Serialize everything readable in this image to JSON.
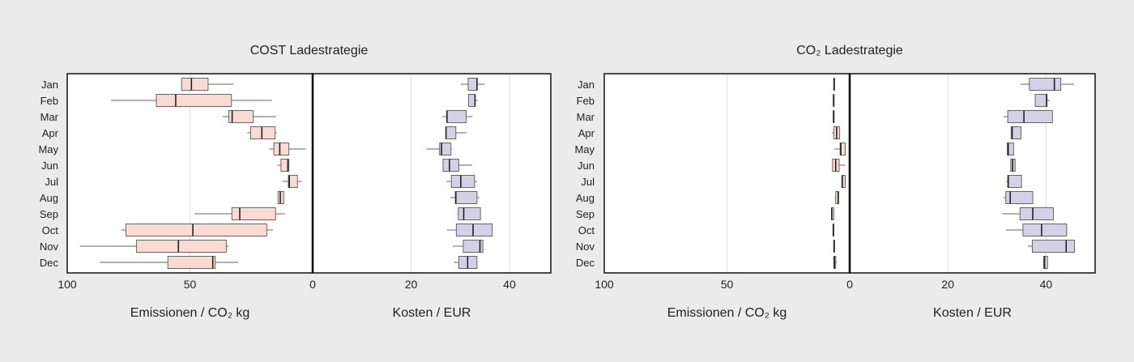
{
  "colors": {
    "background": "#ebebeb",
    "emission_fill": "#f9dcd1",
    "cost_fill": "#d4d0e6",
    "box_stroke": "#666666",
    "median": "#222222",
    "whisker": "#808080",
    "grid": "#dddddd"
  },
  "chart_data": [
    {
      "type": "boxplot-horizontal",
      "title": "COST Ladestrategie",
      "categories": [
        "Jan",
        "Feb",
        "Mar",
        "Apr",
        "May",
        "Jun",
        "Jul",
        "Aug",
        "Sep",
        "Oct",
        "Nov",
        "Dec"
      ],
      "panels": [
        {
          "xlabel": "Emissionen / CO₂ kg",
          "xlim": [
            100,
            0
          ],
          "ticks": [
            "100",
            "50",
            "0"
          ],
          "tick_values": [
            100,
            50,
            0
          ],
          "grid": [
            50
          ],
          "fill": "#f9dcd1",
          "boxes": [
            {
              "min": 32.2,
              "q1": 42.6,
              "median": 49.4,
              "q3": 53.4,
              "max": 53.4
            },
            {
              "min": 16.6,
              "q1": 33.1,
              "median": 55.8,
              "q3": 63.7,
              "max": 82.1
            },
            {
              "min": 14.9,
              "q1": 24.2,
              "median": 32.8,
              "q3": 34.2,
              "max": 36.6
            },
            {
              "min": 14.6,
              "q1": 15.3,
              "median": 20.7,
              "q3": 25.3,
              "max": 26.6
            },
            {
              "min": 2.7,
              "q1": 9.7,
              "median": 13.4,
              "q3": 15.8,
              "max": 17.7
            },
            {
              "min": 9.7,
              "q1": 9.7,
              "median": 10.1,
              "q3": 12.9,
              "max": 14.3
            },
            {
              "min": 4.4,
              "q1": 6.2,
              "median": 9.5,
              "q3": 9.9,
              "max": 12.4
            },
            {
              "min": 11.8,
              "q1": 11.8,
              "median": 13.2,
              "q3": 14.1,
              "max": 14.1
            },
            {
              "min": 11.3,
              "q1": 15.1,
              "median": 29.7,
              "q3": 32.9,
              "max": 48.1
            },
            {
              "min": 16.2,
              "q1": 18.7,
              "median": 48.8,
              "q3": 76.1,
              "max": 78.0
            },
            {
              "min": 34.3,
              "q1": 35.2,
              "median": 54.7,
              "q3": 71.8,
              "max": 94.8
            },
            {
              "min": 30.4,
              "q1": 39.7,
              "median": 40.7,
              "q3": 59.0,
              "max": 86.7
            }
          ]
        },
        {
          "xlabel": "Kosten / EUR",
          "xlim": [
            0,
            48.4
          ],
          "ticks": [
            "20",
            "40"
          ],
          "tick_values": [
            20,
            40
          ],
          "grid": [
            20,
            40
          ],
          "fill": "#d4d0e6",
          "boxes": [
            {
              "min": 30.1,
              "q1": 31.6,
              "median": 33.4,
              "q3": 33.4,
              "max": 35.0
            },
            {
              "min": 31.7,
              "q1": 31.7,
              "median": 33.0,
              "q3": 33.0,
              "max": 33.5
            },
            {
              "min": 26.4,
              "q1": 27.3,
              "median": 27.3,
              "q3": 31.2,
              "max": 32.5
            },
            {
              "min": 27.1,
              "q1": 27.1,
              "median": 27.1,
              "q3": 29.1,
              "max": 31.3
            },
            {
              "min": 23.1,
              "q1": 25.8,
              "median": 26.2,
              "q3": 28.1,
              "max": 28.3
            },
            {
              "min": 26.5,
              "q1": 26.5,
              "median": 27.8,
              "q3": 29.7,
              "max": 32.4
            },
            {
              "min": 27.2,
              "q1": 28.2,
              "median": 30.1,
              "q3": 32.9,
              "max": 33.4
            },
            {
              "min": 28.0,
              "q1": 29.0,
              "median": 29.1,
              "q3": 33.4,
              "max": 33.9
            },
            {
              "min": 29.4,
              "q1": 29.6,
              "median": 30.7,
              "q3": 34.1,
              "max": 34.1
            },
            {
              "min": 27.3,
              "q1": 29.2,
              "median": 32.6,
              "q3": 36.5,
              "max": 36.5
            },
            {
              "min": 28.5,
              "q1": 30.6,
              "median": 34.0,
              "q3": 34.6,
              "max": 34.6
            },
            {
              "min": 28.7,
              "q1": 29.7,
              "median": 31.5,
              "q3": 33.4,
              "max": 33.4
            }
          ]
        }
      ]
    },
    {
      "type": "boxplot-horizontal",
      "title": "CO₂ Ladestrategie",
      "categories": [
        "Jan",
        "Feb",
        "Mar",
        "Apr",
        "May",
        "Jun",
        "Jul",
        "Aug",
        "Sep",
        "Oct",
        "Nov",
        "Dec"
      ],
      "panels": [
        {
          "xlabel": "Emissionen / CO₂ kg",
          "xlim": [
            100,
            0
          ],
          "ticks": [
            "100",
            "50",
            "0"
          ],
          "tick_values": [
            100,
            50,
            0
          ],
          "grid": [
            50
          ],
          "fill": "#f9dcd1",
          "boxes": [
            {
              "min": 6.4,
              "q1": 6.4,
              "median": 6.4,
              "q3": 6.4,
              "max": 6.4
            },
            {
              "min": 6.6,
              "q1": 6.6,
              "median": 6.6,
              "q3": 6.6,
              "max": 6.6
            },
            {
              "min": 6.6,
              "q1": 6.6,
              "median": 6.6,
              "q3": 6.6,
              "max": 6.6
            },
            {
              "min": 3.9,
              "q1": 4.1,
              "median": 5.3,
              "q3": 6.5,
              "max": 7.2
            },
            {
              "min": 1.8,
              "q1": 1.8,
              "median": 3.6,
              "q3": 3.9,
              "max": 6.2
            },
            {
              "min": 1.8,
              "q1": 4.3,
              "median": 5.7,
              "q3": 7.0,
              "max": 7.0
            },
            {
              "min": 1.8,
              "q1": 1.8,
              "median": 3.0,
              "q3": 3.2,
              "max": 3.2
            },
            {
              "min": 4.5,
              "q1": 4.5,
              "median": 4.7,
              "q3": 5.7,
              "max": 6.1
            },
            {
              "min": 6.5,
              "q1": 6.5,
              "median": 7.3,
              "q3": 7.4,
              "max": 7.4
            },
            {
              "min": 6.7,
              "q1": 6.7,
              "median": 6.7,
              "q3": 6.7,
              "max": 6.7
            },
            {
              "min": 6.4,
              "q1": 6.4,
              "median": 6.4,
              "q3": 6.4,
              "max": 6.4
            },
            {
              "min": 5.1,
              "q1": 5.7,
              "median": 6.2,
              "q3": 6.5,
              "max": 6.5
            }
          ]
        },
        {
          "xlabel": "Kosten / EUR",
          "xlim": [
            0,
            50
          ],
          "ticks": [
            "20",
            "40"
          ],
          "tick_values": [
            20,
            40
          ],
          "grid": [
            20,
            40
          ],
          "fill": "#d4d0e6",
          "boxes": [
            {
              "min": 34.8,
              "q1": 36.6,
              "median": 41.7,
              "q3": 43.0,
              "max": 45.7
            },
            {
              "min": 37.8,
              "q1": 37.8,
              "median": 40.1,
              "q3": 40.2,
              "max": 40.8
            },
            {
              "min": 31.3,
              "q1": 32.2,
              "median": 35.5,
              "q3": 41.3,
              "max": 41.4
            },
            {
              "min": 32.9,
              "q1": 32.9,
              "median": 33.1,
              "q3": 34.9,
              "max": 34.9
            },
            {
              "min": 32.1,
              "q1": 32.1,
              "median": 32.3,
              "q3": 33.4,
              "max": 33.4
            },
            {
              "min": 32.8,
              "q1": 32.8,
              "median": 33.2,
              "q3": 33.7,
              "max": 33.7
            },
            {
              "min": 31.9,
              "q1": 32.2,
              "median": 32.3,
              "q3": 35.0,
              "max": 35.0
            },
            {
              "min": 31.3,
              "q1": 31.8,
              "median": 32.7,
              "q3": 37.3,
              "max": 37.3
            },
            {
              "min": 31.1,
              "q1": 34.7,
              "median": 37.3,
              "q3": 41.5,
              "max": 41.5
            },
            {
              "min": 31.8,
              "q1": 35.3,
              "median": 39.1,
              "q3": 44.2,
              "max": 44.2
            },
            {
              "min": 36.3,
              "q1": 37.2,
              "median": 44.1,
              "q3": 45.8,
              "max": 45.8
            },
            {
              "min": 39.5,
              "q1": 39.5,
              "median": 39.7,
              "q3": 40.3,
              "max": 40.3
            }
          ]
        }
      ]
    }
  ]
}
